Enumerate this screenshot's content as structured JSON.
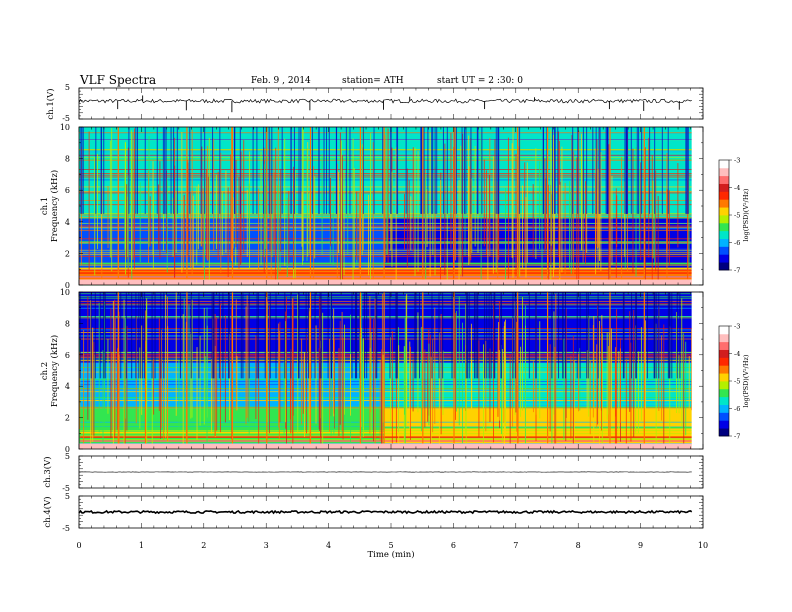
{
  "header": {
    "title": "VLF  Spectra",
    "date": "Feb. 9  , 2014",
    "station": "station= ATH",
    "start": "start  UT =  2  :30: 0"
  },
  "colorbar": {
    "label": "log(PSD)(V²/Hz)",
    "ticks": [
      "-3",
      "-4",
      "-5",
      "-6",
      "-7"
    ],
    "colors": [
      "#000080",
      "#0000e6",
      "#0050ff",
      "#00b4ff",
      "#00e6c8",
      "#32e650",
      "#b4f000",
      "#ffd200",
      "#ff7800",
      "#ff2800",
      "#d21e1e",
      "#ff6e6e",
      "#ffbebe",
      "#ffffff"
    ]
  },
  "chart_data": [
    {
      "type": "line",
      "panel": "ch.1(V)",
      "ylabel": "ch.1(V)",
      "ylim": [
        -5,
        5
      ],
      "yticks": [
        "5",
        "-5"
      ],
      "xlim": [
        0,
        10
      ],
      "baseline": 0.8,
      "noise_amplitude": 0.6,
      "spikes": [
        {
          "t": 0.62,
          "v": -1.8
        },
        {
          "t": 1.02,
          "v": 2.6
        },
        {
          "t": 1.72,
          "v": -2.2
        },
        {
          "t": 2.45,
          "v": -2.8
        },
        {
          "t": 3.7,
          "v": -2.2
        },
        {
          "t": 4.88,
          "v": -2.0
        },
        {
          "t": 5.3,
          "v": 2.2
        },
        {
          "t": 6.5,
          "v": -1.8
        },
        {
          "t": 7.3,
          "v": 2.0
        },
        {
          "t": 8.5,
          "v": -1.8
        },
        {
          "t": 9.05,
          "v": -2.4
        },
        {
          "t": 9.62,
          "v": -2.0
        }
      ]
    },
    {
      "type": "heatmap",
      "panel": "ch.1",
      "ylabel": "Frequency (kHz)",
      "ylim": [
        0,
        10
      ],
      "yticks": [
        "10",
        "8",
        "6",
        "4",
        "2",
        "0"
      ],
      "xlim": [
        0,
        9.82
      ],
      "clim": [
        -7,
        -3
      ],
      "colorbar_label": "log(PSD)(V²/Hz)",
      "time_change_min": 4.88,
      "background_profile": [
        {
          "f_min": 0.0,
          "f_max": 0.35,
          "psd": -4.2
        },
        {
          "f_min": 0.35,
          "f_max": 1.0,
          "psd": -4.6
        },
        {
          "f_min": 1.0,
          "f_max": 2.6,
          "psd": -6.3
        },
        {
          "f_min": 2.6,
          "f_max": 4.3,
          "psd": -6.4
        },
        {
          "f_min": 4.3,
          "f_max": 10.0,
          "psd": -5.8
        }
      ],
      "strong_spikes_min": [
        0.62,
        1.72,
        2.45,
        3.0,
        3.7,
        4.5,
        4.88,
        5.5,
        6.0,
        7.02,
        7.5,
        8.5,
        9.05
      ]
    },
    {
      "type": "heatmap",
      "panel": "ch.2",
      "ylabel": "Frequency (kHz)",
      "ylim": [
        0,
        10
      ],
      "yticks": [
        "10",
        "8",
        "6",
        "4",
        "2",
        "0"
      ],
      "xlim": [
        0,
        9.82
      ],
      "clim": [
        -7,
        -3
      ],
      "colorbar_label": "log(PSD)(V²/Hz)",
      "time_change_min": 4.88,
      "background_profile": [
        {
          "f_min": 0.0,
          "f_max": 0.35,
          "psd": -4.6
        },
        {
          "f_min": 0.35,
          "f_max": 2.6,
          "psd": -5.5
        },
        {
          "f_min": 2.6,
          "f_max": 5.5,
          "psd": -6.1
        },
        {
          "f_min": 5.5,
          "f_max": 10.0,
          "psd": -6.5
        }
      ],
      "strong_spikes_min": [
        0.62,
        1.72,
        2.45,
        3.0,
        3.7,
        4.5,
        4.88,
        5.5,
        6.0,
        7.02,
        7.5,
        8.5,
        9.05
      ]
    },
    {
      "type": "line",
      "panel": "ch.3(V)",
      "ylabel": "ch.3(V)",
      "ylim": [
        -5,
        5
      ],
      "yticks": [
        "5",
        "-5"
      ],
      "xlim": [
        0,
        10
      ],
      "baseline": 0.0,
      "noise_amplitude": 0.05
    },
    {
      "type": "line",
      "panel": "ch.4(V)",
      "ylabel": "ch.4(V)",
      "ylim": [
        -5,
        5
      ],
      "yticks": [
        "5",
        "-5"
      ],
      "xlim": [
        0,
        10
      ],
      "baseline": 0.0,
      "noise_amplitude": 0.35
    }
  ],
  "xaxis": {
    "label": "Time  (min)",
    "ticks": [
      "0",
      "1",
      "2",
      "3",
      "4",
      "5",
      "6",
      "7",
      "8",
      "9",
      "10"
    ]
  }
}
